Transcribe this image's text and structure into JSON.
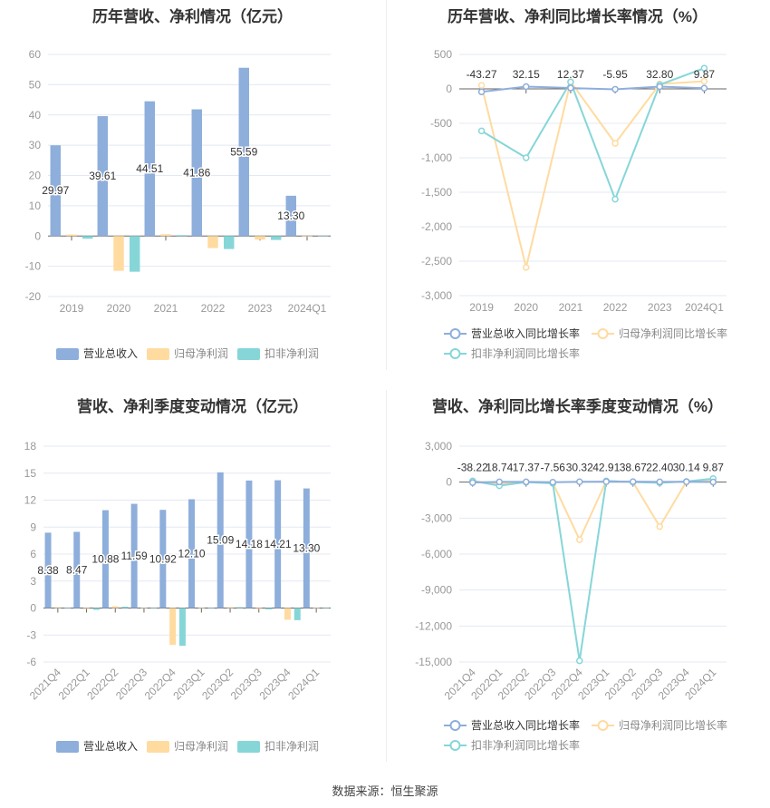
{
  "colors": {
    "revenue": "#8eaedb",
    "net": "#ffdba0",
    "deducted": "#86d6d8",
    "axis": "#666",
    "grid": "#e3e8f3",
    "tick": "#999"
  },
  "source": "数据来源：恒生聚源",
  "chart_data": [
    {
      "type": "bar",
      "title": "历年营收、净利情况（亿元）",
      "categories": [
        "2019",
        "2020",
        "2021",
        "2022",
        "2023",
        "2024Q1"
      ],
      "ylim": [
        -20,
        60
      ],
      "yticks": [
        60,
        50,
        40,
        30,
        20,
        10,
        0,
        -10,
        -20
      ],
      "series": [
        {
          "name": "营业总收入",
          "values": [
            29.97,
            39.61,
            44.51,
            41.86,
            55.59,
            13.3
          ],
          "labels": [
            "29.97",
            "39.61",
            "44.51",
            "41.86",
            "55.59",
            "13.30"
          ]
        },
        {
          "name": "归母净利润",
          "values": [
            0.5,
            -11.5,
            0.6,
            -4.0,
            -1.2,
            0.05
          ]
        },
        {
          "name": "扣非净利润",
          "values": [
            -0.9,
            -11.8,
            0.3,
            -4.3,
            -1.3,
            0.03
          ]
        }
      ]
    },
    {
      "type": "line",
      "title": "历年营收、净利同比增长率情况（%）",
      "categories": [
        "2019",
        "2020",
        "2021",
        "2022",
        "2023",
        "2024Q1"
      ],
      "ylim": [
        -3000,
        500
      ],
      "yticks": [
        "500",
        "0",
        "-500",
        "-1,000",
        "-1,500",
        "-2,000",
        "-2,500",
        "-3,000"
      ],
      "ytickvals": [
        500,
        0,
        -500,
        -1000,
        -1500,
        -2000,
        -2500,
        -3000
      ],
      "series": [
        {
          "name": "营业总收入同比增长率",
          "values": [
            -43.27,
            32.15,
            12.37,
            -5.95,
            32.8,
            9.87
          ],
          "labels": [
            "-43.27",
            "32.15",
            "12.37",
            "-5.95",
            "32.80",
            "9.87"
          ]
        },
        {
          "name": "归母净利润同比增长率",
          "values": [
            50,
            -2590,
            105,
            -790,
            70,
            110
          ]
        },
        {
          "name": "扣非净利润同比增长率",
          "values": [
            -610,
            -1000,
            100,
            -1600,
            60,
            300
          ]
        }
      ]
    },
    {
      "type": "bar",
      "title": "营收、净利季度变动情况（亿元）",
      "categories": [
        "2021Q4",
        "2022Q1",
        "2022Q2",
        "2022Q3",
        "2022Q4",
        "2023Q1",
        "2023Q2",
        "2023Q3",
        "2023Q4",
        "2024Q1"
      ],
      "ylim": [
        -6,
        18
      ],
      "yticks": [
        18,
        15,
        12,
        9,
        6,
        3,
        0,
        -3,
        -6
      ],
      "series": [
        {
          "name": "营业总收入",
          "values": [
            8.38,
            8.47,
            10.88,
            11.59,
            10.92,
            12.1,
            15.09,
            14.18,
            14.21,
            13.3
          ],
          "labels": [
            "8.38",
            "8.47",
            "10.88",
            "11.59",
            "10.92",
            "12.10",
            "15.09",
            "14.18",
            "14.21",
            "13.30"
          ]
        },
        {
          "name": "归母净利润",
          "values": [
            0.1,
            -0.1,
            0.2,
            0.0,
            -4.1,
            0.02,
            0.1,
            -0.1,
            -1.3,
            0.05
          ]
        },
        {
          "name": "扣非净利润",
          "values": [
            0.0,
            -0.2,
            0.15,
            -0.05,
            -4.2,
            0.0,
            0.1,
            -0.15,
            -1.35,
            0.03
          ]
        }
      ]
    },
    {
      "type": "line",
      "title": "营收、净利同比增长率季度变动情况（%）",
      "categories": [
        "2021Q4",
        "2022Q1",
        "2022Q2",
        "2022Q3",
        "2022Q4",
        "2023Q1",
        "2023Q2",
        "2023Q3",
        "2023Q4",
        "2024Q1"
      ],
      "ylim": [
        -15000,
        3000
      ],
      "yticks": [
        "3,000",
        "0",
        "-3,000",
        "-6,000",
        "-9,000",
        "-12,000",
        "-15,000"
      ],
      "ytickvals": [
        3000,
        0,
        -3000,
        -6000,
        -9000,
        -12000,
        -15000
      ],
      "series": [
        {
          "name": "营业总收入同比增长率",
          "values": [
            -38.22,
            18.74,
            17.37,
            -7.56,
            30.32,
            42.91,
            38.67,
            22.4,
            30.14,
            9.87
          ],
          "labels": [
            "-38.22",
            "18.74",
            "17.37",
            "-7.56",
            "30.32",
            "42.91",
            "38.67",
            "22.40",
            "30.14",
            "9.87"
          ]
        },
        {
          "name": "归母净利润同比增长率",
          "values": [
            100,
            -150,
            0,
            -50,
            -4800,
            100,
            0,
            -3700,
            50,
            130
          ]
        },
        {
          "name": "扣非净利润同比增长率",
          "values": [
            100,
            -300,
            0,
            -100,
            -14900,
            100,
            0,
            -50,
            50,
            300
          ]
        }
      ]
    }
  ]
}
